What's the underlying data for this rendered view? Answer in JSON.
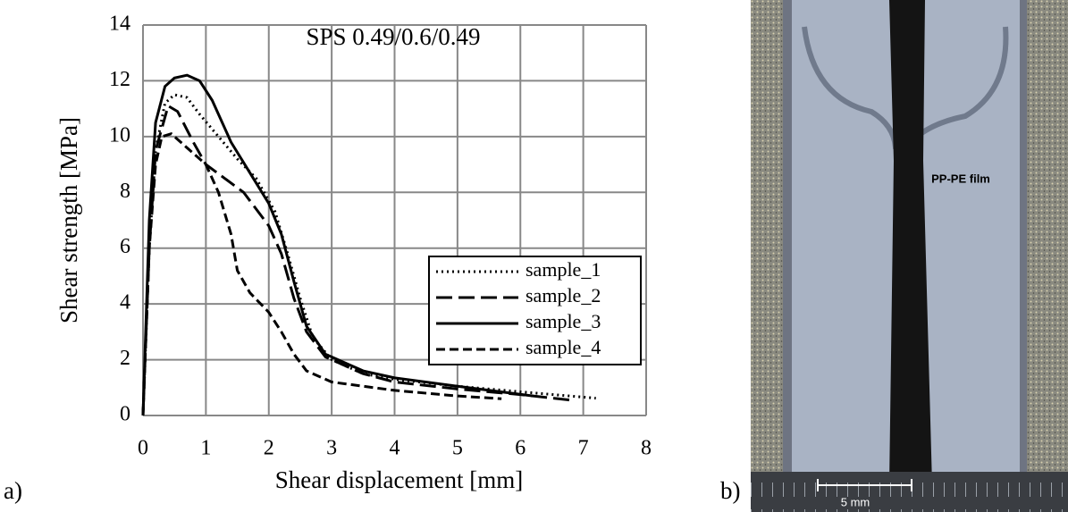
{
  "chart_data": {
    "type": "line",
    "annotation": "SPS 0.49/0.6/0.49",
    "x_label": "Shear displacement [mm]",
    "y_label": "Shear strength [MPa]",
    "xlim": [
      0,
      8
    ],
    "xticks": [
      0,
      1,
      2,
      3,
      4,
      5,
      6,
      7,
      8
    ],
    "ylim": [
      0,
      14
    ],
    "yticks": [
      0,
      2,
      4,
      6,
      8,
      10,
      12,
      14
    ],
    "grid": true,
    "legend": "lower right",
    "series": [
      {
        "name": "sample_1",
        "color": "#000000",
        "dash": "dotted",
        "x": [
          0,
          0.1,
          0.2,
          0.35,
          0.5,
          0.7,
          0.9,
          1.2,
          1.5,
          1.8,
          2.1,
          2.3,
          2.5,
          2.7,
          3,
          3.5,
          4,
          5,
          6,
          7.2
        ],
        "values": [
          0,
          6,
          9.5,
          11.2,
          11.5,
          11.4,
          10.8,
          10,
          9.2,
          8.5,
          7.3,
          5.8,
          4.2,
          2.8,
          2,
          1.5,
          1.3,
          1.05,
          0.85,
          0.62
        ]
      },
      {
        "name": "sample_2",
        "color": "#000000",
        "dash": "long",
        "x": [
          0,
          0.1,
          0.2,
          0.4,
          0.55,
          0.8,
          1,
          1.3,
          1.6,
          2,
          2.2,
          2.4,
          2.6,
          2.9,
          3.5,
          4,
          5,
          6,
          6.8
        ],
        "values": [
          0,
          6,
          9.5,
          11.1,
          10.9,
          9.8,
          9,
          8.5,
          8,
          6.8,
          5.8,
          4.2,
          3,
          2.1,
          1.5,
          1.2,
          0.95,
          0.75,
          0.55
        ]
      },
      {
        "name": "sample_3",
        "color": "#000000",
        "dash": "solid",
        "x": [
          0,
          0.1,
          0.2,
          0.35,
          0.5,
          0.7,
          0.9,
          1.1,
          1.4,
          1.7,
          2,
          2.2,
          2.4,
          2.6,
          2.9,
          3.5,
          4,
          5,
          6.2
        ],
        "values": [
          0,
          7,
          10.5,
          11.8,
          12.1,
          12.2,
          12,
          11.3,
          9.8,
          8.7,
          7.6,
          6.5,
          4.8,
          3.2,
          2.2,
          1.6,
          1.35,
          1.05,
          0.7
        ]
      },
      {
        "name": "sample_4",
        "color": "#000000",
        "dash": "short",
        "x": [
          0,
          0.1,
          0.2,
          0.3,
          0.45,
          0.7,
          1,
          1.2,
          1.4,
          1.5,
          1.7,
          2,
          2.2,
          2.4,
          2.6,
          3,
          4,
          5,
          5.7
        ],
        "values": [
          0,
          6,
          9,
          10,
          10.1,
          9.6,
          9,
          8,
          6.5,
          5.2,
          4.4,
          3.7,
          3,
          2.2,
          1.6,
          1.2,
          0.9,
          0.7,
          0.6
        ]
      }
    ]
  },
  "panel_labels": [
    "a)",
    "b)"
  ],
  "photo": {
    "label": "PP-PE film",
    "scale_bar": "5 mm"
  }
}
